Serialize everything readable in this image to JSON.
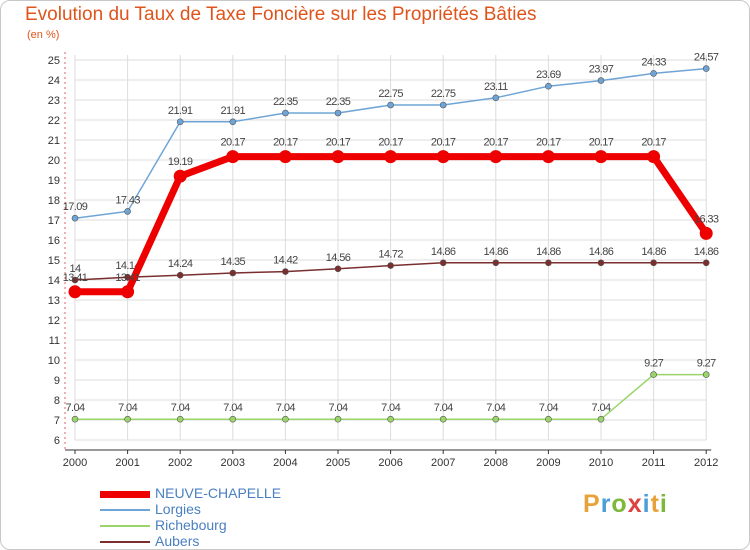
{
  "title": "Evolution du Taux de Taxe Foncière sur les Propriétés Bâties",
  "subtitle": "(en %)",
  "colors": {
    "title": "#e0541c",
    "grid": "#dcdcdc",
    "axis": "#333333",
    "label": "#333333"
  },
  "logo": {
    "letters": [
      "P",
      "r",
      "o",
      "x",
      "i",
      "t",
      "i"
    ],
    "colors": [
      "#e8a23a",
      "#4a9fd8",
      "#7cb83a",
      "#e04040",
      "#4a9fd8",
      "#e8a23a",
      "#7cb83a"
    ]
  },
  "chart_data": {
    "type": "line",
    "title": "Evolution du Taux de Taxe Foncière sur les Propriétés Bâties",
    "ylabel": "(en %)",
    "xlabel": "",
    "ylim": [
      6,
      25
    ],
    "yticks": [
      6,
      7,
      8,
      9,
      10,
      11,
      12,
      13,
      14,
      15,
      16,
      17,
      18,
      19,
      20,
      21,
      22,
      23,
      24,
      25
    ],
    "categories": [
      "2000",
      "2001",
      "2002",
      "2003",
      "2004",
      "2005",
      "2006",
      "2007",
      "2008",
      "2009",
      "2010",
      "2011",
      "2012"
    ],
    "grid": true,
    "series": [
      {
        "name": "Lorgies",
        "color": "#6fa5d6",
        "values": [
          17.09,
          17.43,
          21.91,
          21.91,
          22.35,
          22.35,
          22.75,
          22.75,
          23.11,
          23.69,
          23.97,
          24.33,
          24.57
        ],
        "labels": [
          "17.09",
          "17.43",
          "21.91",
          "21.91",
          "22.35",
          "22.35",
          "22.75",
          "22.75",
          "23.11",
          "23.69",
          "23.97",
          "24.33",
          "24.57"
        ]
      },
      {
        "name": "Aubers",
        "color": "#7a2e2e",
        "values": [
          14,
          14.14,
          14.24,
          14.35,
          14.42,
          14.56,
          14.72,
          14.86,
          14.86,
          14.86,
          14.86,
          14.86,
          14.86
        ],
        "labels": [
          "14",
          "14.14",
          "14.24",
          "14.35",
          "14.42",
          "14.56",
          "14.72",
          "14.86",
          "14.86",
          "14.86",
          "14.86",
          "14.86",
          "14.86"
        ]
      },
      {
        "name": "Richebourg",
        "color": "#9ad56a",
        "values": [
          7.04,
          7.04,
          7.04,
          7.04,
          7.04,
          7.04,
          7.04,
          7.04,
          7.04,
          7.04,
          7.04,
          9.27,
          9.27
        ],
        "labels": [
          "7.04",
          "7.04",
          "7.04",
          "7.04",
          "7.04",
          "7.04",
          "7.04",
          "7.04",
          "7.04",
          "7.04",
          "7.04",
          "9.27",
          "9.27"
        ]
      },
      {
        "name": "NEUVE-CHAPELLE",
        "color": "#ee0000",
        "values": [
          13.41,
          13.41,
          19.19,
          20.17,
          20.17,
          20.17,
          20.17,
          20.17,
          20.17,
          20.17,
          20.17,
          20.17,
          16.33
        ],
        "labels": [
          "13.41",
          "13.41",
          "19.19",
          "20.17",
          "20.17",
          "20.17",
          "20.17",
          "20.17",
          "20.17",
          "20.17",
          "20.17",
          "20.17",
          "16.33"
        ]
      }
    ],
    "legend": [
      {
        "name": "NEUVE-CHAPELLE",
        "color": "#ee0000",
        "text_color": "#4a7fc0"
      },
      {
        "name": "Lorgies",
        "color": "#6fa5d6",
        "text_color": "#4a7fc0"
      },
      {
        "name": "Richebourg",
        "color": "#9ad56a",
        "text_color": "#4a7fc0"
      },
      {
        "name": "Aubers",
        "color": "#7a2e2e",
        "text_color": "#4a7fc0"
      }
    ]
  }
}
